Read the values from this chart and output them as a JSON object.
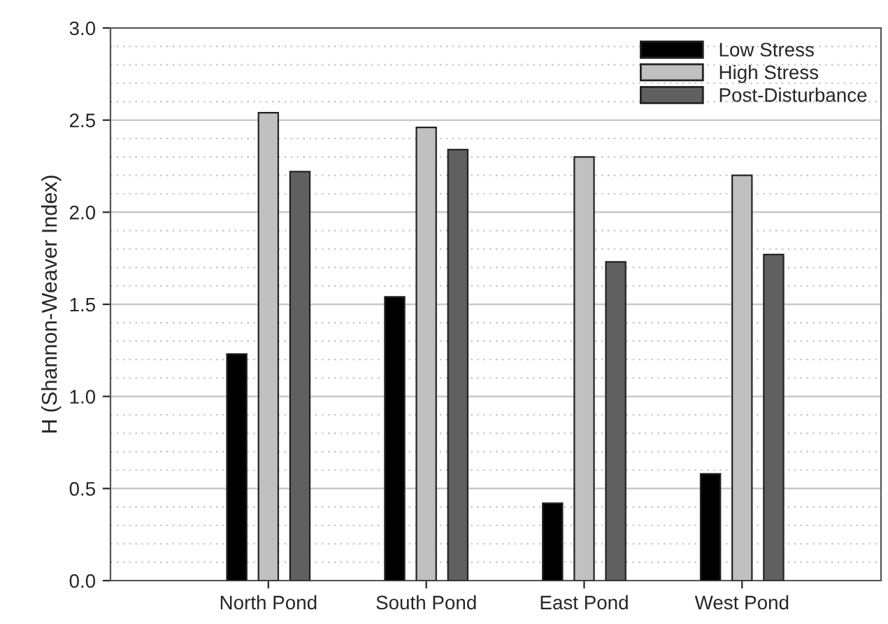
{
  "chart_data": {
    "type": "bar",
    "ylabel": "H (Shannon-Weaver Index)",
    "categories": [
      "North Pond",
      "South Pond",
      "East Pond",
      "West Pond"
    ],
    "series": [
      {
        "name": "Low Stress",
        "color": "#000000",
        "values": [
          1.23,
          1.54,
          0.42,
          0.58
        ]
      },
      {
        "name": "High Stress",
        "color": "#c0c0c0",
        "values": [
          2.54,
          2.46,
          2.3,
          2.2
        ]
      },
      {
        "name": "Post-Disturbance",
        "color": "#606060",
        "values": [
          2.22,
          2.34,
          1.73,
          1.77
        ]
      }
    ],
    "ylim": [
      0,
      3.0
    ],
    "yticks": [
      {
        "value": 0,
        "label": "0.0"
      },
      {
        "value": 0.5,
        "label": "0.5"
      },
      {
        "value": 1.0,
        "label": "1.0"
      },
      {
        "value": 1.5,
        "label": "1.5"
      },
      {
        "value": 2.0,
        "label": "2.0"
      },
      {
        "value": 2.5,
        "label": "2.5"
      },
      {
        "value": 3.0,
        "label": "3.0"
      }
    ],
    "grid": "y",
    "legend": "top right"
  }
}
